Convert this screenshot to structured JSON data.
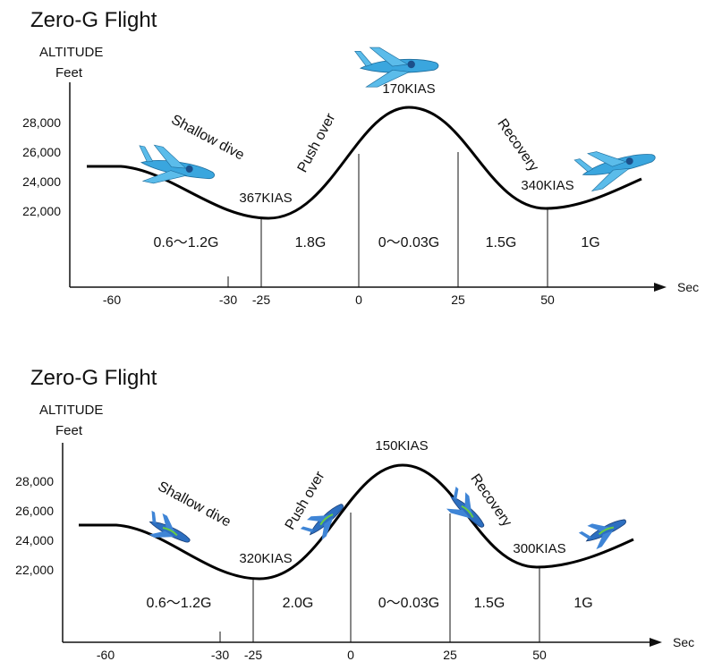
{
  "panels": [
    {
      "title": "Zero-G Flight",
      "y_label": "ALTITUDE",
      "y_unit": "Feet",
      "y_ticks": [
        "28,000",
        "26,000",
        "24,000",
        "22,000"
      ],
      "x_ticks": [
        "-60",
        "-30",
        "-25",
        "0",
        "25",
        "50"
      ],
      "x_label": "Sec",
      "phases": [
        "Shallow dive",
        "Push over",
        "Recovery"
      ],
      "speeds": [
        "367KIAS",
        "170KIAS",
        "340KIAS"
      ],
      "g_loads": [
        "0.6～1.2G",
        "1.8G",
        "0～0.03G",
        "1.5G",
        "1G"
      ]
    },
    {
      "title": "Zero-G Flight",
      "y_label": "ALTITUDE",
      "y_unit": "Feet",
      "y_ticks": [
        "28,000",
        "26,000",
        "24,000",
        "22,000"
      ],
      "x_ticks": [
        "-60",
        "-30",
        "-25",
        "0",
        "25",
        "50"
      ],
      "x_label": "Sec",
      "phases": [
        "Shallow dive",
        "Push over",
        "Recovery"
      ],
      "speeds": [
        "320KIAS",
        "150KIAS",
        "300KIAS"
      ],
      "g_loads": [
        "0.6～1.2G",
        "2.0G",
        "0～0.03G",
        "1.5G",
        "1G"
      ]
    }
  ]
}
